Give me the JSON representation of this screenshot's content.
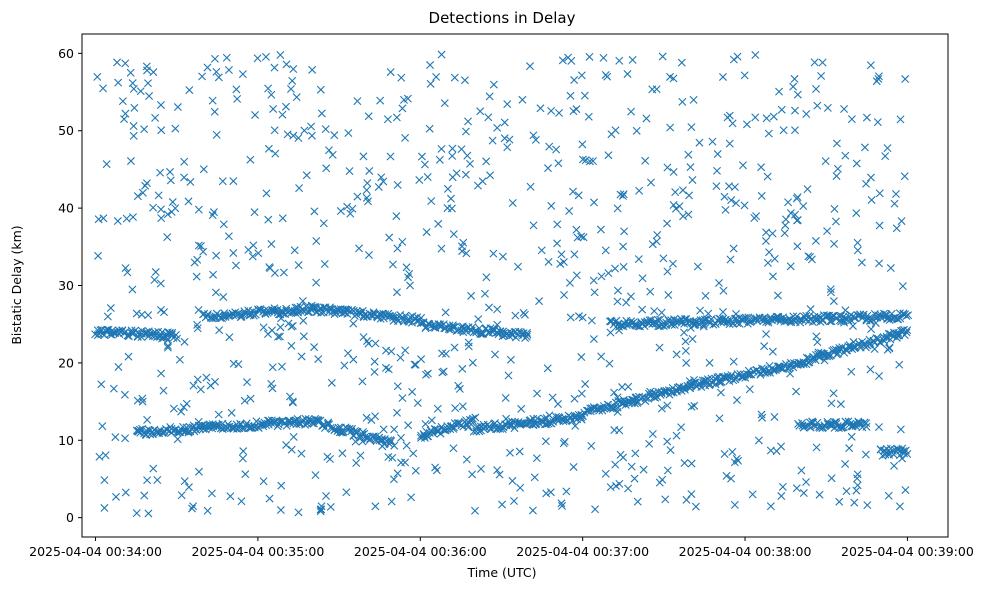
{
  "chart_data": {
    "type": "scatter",
    "title": "Detections in Delay",
    "xlabel": "Time (UTC)",
    "ylabel": "Bistatic Delay (km)",
    "x_unit": "UTC datetime",
    "xlim": [
      "2025-04-04 00:33:55",
      "2025-04-04 00:39:15"
    ],
    "ylim": [
      -2.5,
      62.5
    ],
    "x_ticks": [
      "2025-04-04 00:34:00",
      "2025-04-04 00:35:00",
      "2025-04-04 00:36:00",
      "2025-04-04 00:37:00",
      "2025-04-04 00:38:00",
      "2025-04-04 00:39:00"
    ],
    "y_ticks": [
      0,
      10,
      20,
      30,
      40,
      50,
      60
    ],
    "grid": false,
    "legend": "none",
    "marker": "x",
    "color": "#1f77b4",
    "series": [
      {
        "target_tracks": [
          {
            "from": [
              "2025-04-04 00:34:00",
              24.0
            ],
            "to": [
              "2025-04-04 00:34:30",
              23.5
            ]
          },
          {
            "from": [
              "2025-04-04 00:34:40",
              26.0
            ],
            "to": [
              "2025-04-04 00:35:20",
              27.0
            ]
          },
          {
            "from": [
              "2025-04-04 00:35:20",
              27.0
            ],
            "to": [
              "2025-04-04 00:36:00",
              25.5
            ]
          },
          {
            "from": [
              "2025-04-04 00:36:00",
              25.0
            ],
            "to": [
              "2025-04-04 00:36:40",
              23.5
            ]
          },
          {
            "from": [
              "2025-04-04 00:37:10",
              25.0
            ],
            "to": [
              "2025-04-04 00:39:00",
              26.0
            ]
          },
          {
            "from": [
              "2025-04-04 00:34:15",
              11.0
            ],
            "to": [
              "2025-04-04 00:35:20",
              12.5
            ]
          },
          {
            "from": [
              "2025-04-04 00:35:20",
              12.5
            ],
            "to": [
              "2025-04-04 00:35:50",
              9.5
            ]
          },
          {
            "from": [
              "2025-04-04 00:36:00",
              10.5
            ],
            "to": [
              "2025-04-04 00:36:20",
              12.5
            ]
          },
          {
            "from": [
              "2025-04-04 00:36:20",
              11.5
            ],
            "to": [
              "2025-04-04 00:37:00",
              13.0
            ]
          },
          {
            "from": [
              "2025-04-04 00:37:00",
              13.5
            ],
            "to": [
              "2025-04-04 00:37:40",
              17.0
            ]
          },
          {
            "from": [
              "2025-04-04 00:37:40",
              17.0
            ],
            "to": [
              "2025-04-04 00:38:20",
              20.0
            ]
          },
          {
            "from": [
              "2025-04-04 00:38:20",
              20.0
            ],
            "to": [
              "2025-04-04 00:39:00",
              24.0
            ]
          },
          {
            "from": [
              "2025-04-04 00:38:20",
              12.0
            ],
            "to": [
              "2025-04-04 00:38:45",
              12.0
            ]
          },
          {
            "from": [
              "2025-04-04 00:38:50",
              8.5
            ],
            "to": [
              "2025-04-04 00:39:00",
              8.5
            ]
          }
        ],
        "clutter": {
          "x_range": [
            "2025-04-04 00:34:00",
            "2025-04-04 00:39:00"
          ],
          "y_range": [
            0.5,
            60
          ],
          "approx_count": 900
        }
      }
    ]
  }
}
